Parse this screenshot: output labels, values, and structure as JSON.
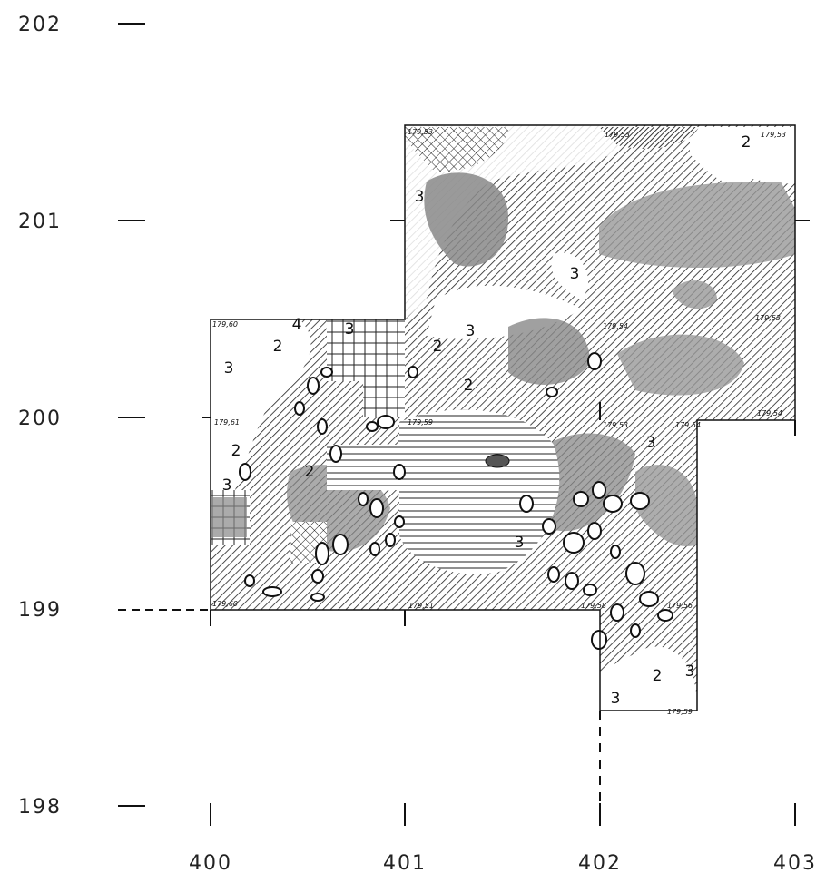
{
  "axes": {
    "y_labels": [
      "202",
      "201",
      "200",
      "199",
      "198"
    ],
    "x_labels": [
      "400",
      "401",
      "402",
      "403"
    ]
  },
  "zone_labels": [
    "3",
    "3",
    "3",
    "3",
    "3",
    "3",
    "3",
    "3",
    "3",
    "3",
    "2",
    "2",
    "2",
    "2",
    "2",
    "2",
    "2",
    "4"
  ],
  "elevations": [
    "179,53",
    "179,53",
    "179,53",
    "179,53",
    "179,54",
    "179,53",
    "179,54",
    "179,54",
    "179,60",
    "179,61",
    "179,60",
    "179,59",
    "179,51",
    "179,59",
    "179,56",
    "179,58"
  ]
}
